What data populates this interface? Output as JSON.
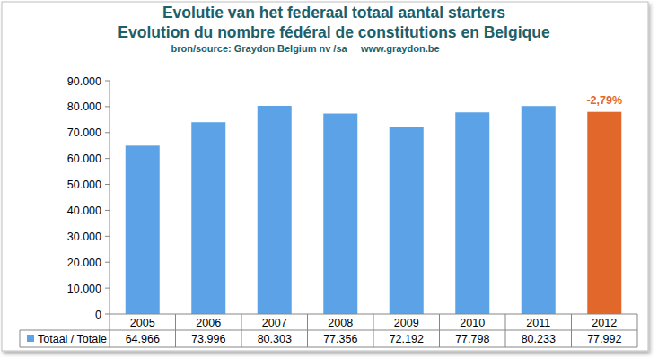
{
  "chart_data": {
    "type": "bar",
    "title": "Evolutie van het federaal totaal aantal starters",
    "subtitle": "Evolution du nombre fédéral de constitutions en Belgique",
    "source": "bron/source: Graydon Belgium nv /sa     www.graydon.be",
    "categories": [
      "2005",
      "2006",
      "2007",
      "2008",
      "2009",
      "2010",
      "2011",
      "2012"
    ],
    "series": [
      {
        "name": "Totaal / Totale",
        "color": "#5ba3e6",
        "colors": [
          "#5ba3e6",
          "#5ba3e6",
          "#5ba3e6",
          "#5ba3e6",
          "#5ba3e6",
          "#5ba3e6",
          "#5ba3e6",
          "#e2672b"
        ],
        "values": [
          64966,
          73996,
          80303,
          77356,
          72192,
          77798,
          80233,
          77992
        ],
        "value_labels": [
          "64.966",
          "73.996",
          "80.303",
          "77.356",
          "72.192",
          "77.798",
          "80.233",
          "77.992"
        ]
      }
    ],
    "annotations": [
      {
        "text": "-2,79%",
        "category": "2012"
      }
    ],
    "ylim": [
      0,
      90000
    ],
    "yticks": [
      0,
      {
        "value": 10000,
        "label": "10.000"
      },
      {
        "value": 20000,
        "label": "20.000"
      },
      {
        "value": 30000,
        "label": "30.000"
      },
      {
        "value": 40000,
        "label": "40.000"
      },
      {
        "value": 50000,
        "label": "50.000"
      },
      {
        "value": 60000,
        "label": "60.000"
      },
      {
        "value": 70000,
        "label": "70.000"
      },
      {
        "value": 80000,
        "label": "80.000"
      },
      {
        "value": 90000,
        "label": "90.000"
      }
    ],
    "grid": false,
    "data_labels": true
  }
}
